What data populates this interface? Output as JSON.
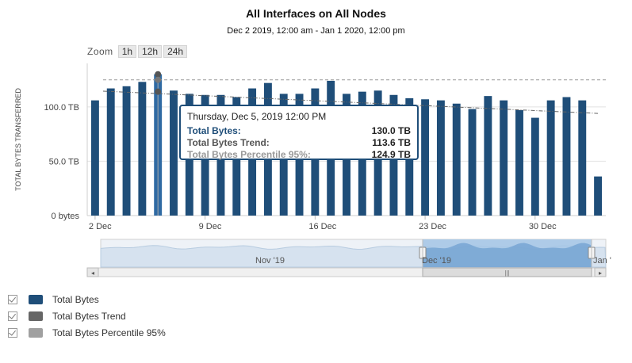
{
  "title": "All Interfaces on All Nodes",
  "subtitle": "Dec 2 2019, 12:00 am - Jan 1 2020, 12:00 pm",
  "zoom": {
    "label": "Zoom",
    "buttons": [
      "1h",
      "12h",
      "24h"
    ]
  },
  "tooltip": {
    "date": "Thursday, Dec 5, 2019 12:00 PM",
    "rows": [
      {
        "label": "Total Bytes:",
        "value": "130.0 TB",
        "color": "#1f4e79"
      },
      {
        "label": "Total Bytes Trend:",
        "value": "113.6 TB",
        "color": "#555555"
      },
      {
        "label": "Total Bytes Percentile 95%:",
        "value": "124.9 TB",
        "color": "#999999"
      }
    ]
  },
  "chart_data": {
    "type": "bar",
    "ylabel": "TOTAL BYTES TRANSFERRED",
    "ylim": [
      0,
      140
    ],
    "yticks": [
      {
        "value": 0,
        "label": "0 bytes"
      },
      {
        "value": 50,
        "label": "50.0 TB"
      },
      {
        "value": 100,
        "label": "100.0 TB"
      }
    ],
    "xticks": [
      {
        "index": 0,
        "label": "2 Dec"
      },
      {
        "index": 7,
        "label": "9 Dec"
      },
      {
        "index": 14,
        "label": "16 Dec"
      },
      {
        "index": 21,
        "label": "23 Dec"
      },
      {
        "index": 28,
        "label": "30 Dec"
      }
    ],
    "series": [
      {
        "name": "Total Bytes",
        "color": "#1f4e79",
        "values": [
          106,
          117,
          119,
          123,
          130,
          115,
          112,
          111,
          111,
          109,
          117,
          122,
          112,
          112,
          117,
          124,
          112,
          114,
          115,
          111,
          108,
          107,
          106,
          103,
          98,
          110,
          106,
          97,
          90,
          106,
          109,
          106,
          36
        ]
      },
      {
        "name": "Total Bytes Trend",
        "color": "#666666",
        "start": 114.5,
        "end": 94
      },
      {
        "name": "Total Bytes Percentile 95%",
        "color": "#999999",
        "value": 124.9
      }
    ],
    "highlight_index": 4,
    "navigator": {
      "labels": [
        "Nov '19",
        "Dec '19",
        "Jan '"
      ]
    }
  },
  "legend": [
    {
      "label": "Total Bytes",
      "color": "#1f4e79"
    },
    {
      "label": "Total Bytes Trend",
      "color": "#666666"
    },
    {
      "label": "Total Bytes Percentile 95%",
      "color": "#a0a0a0"
    }
  ]
}
